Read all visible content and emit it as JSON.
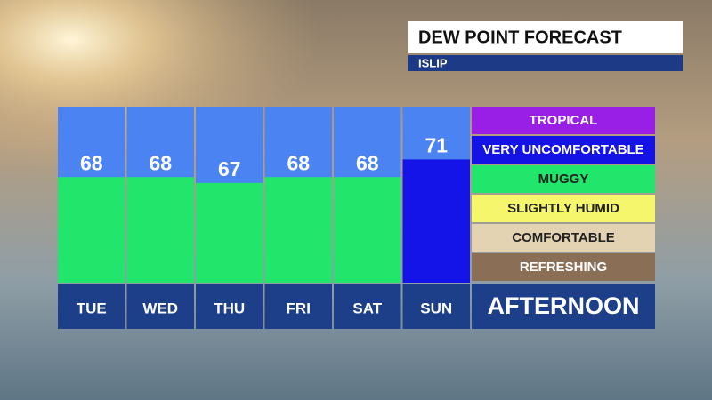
{
  "chart_data": {
    "type": "bar",
    "title": "DEW POINT FORECAST",
    "subtitle": "ISLIP",
    "categories": [
      "TUE",
      "WED",
      "THU",
      "FRI",
      "SAT",
      "SUN"
    ],
    "values": [
      68,
      68,
      67,
      68,
      68,
      71
    ],
    "colors": [
      "#22e56b",
      "#22e56b",
      "#22e56b",
      "#22e56b",
      "#22e56b",
      "#1414e8"
    ],
    "ylim": [
      50,
      80
    ],
    "legend": [
      {
        "label": "TROPICAL",
        "color": "#9a1fe6"
      },
      {
        "label": "VERY UNCOMFORTABLE",
        "color": "#1313e6"
      },
      {
        "label": "MUGGY",
        "color": "#22e56b"
      },
      {
        "label": "SLIGHTLY HUMID",
        "color": "#f6f66c"
      },
      {
        "label": "COMFORTABLE",
        "color": "#e4d3b2"
      },
      {
        "label": "REFRESHING",
        "color": "#8a6f56"
      }
    ],
    "footer": "AFTERNOON"
  }
}
